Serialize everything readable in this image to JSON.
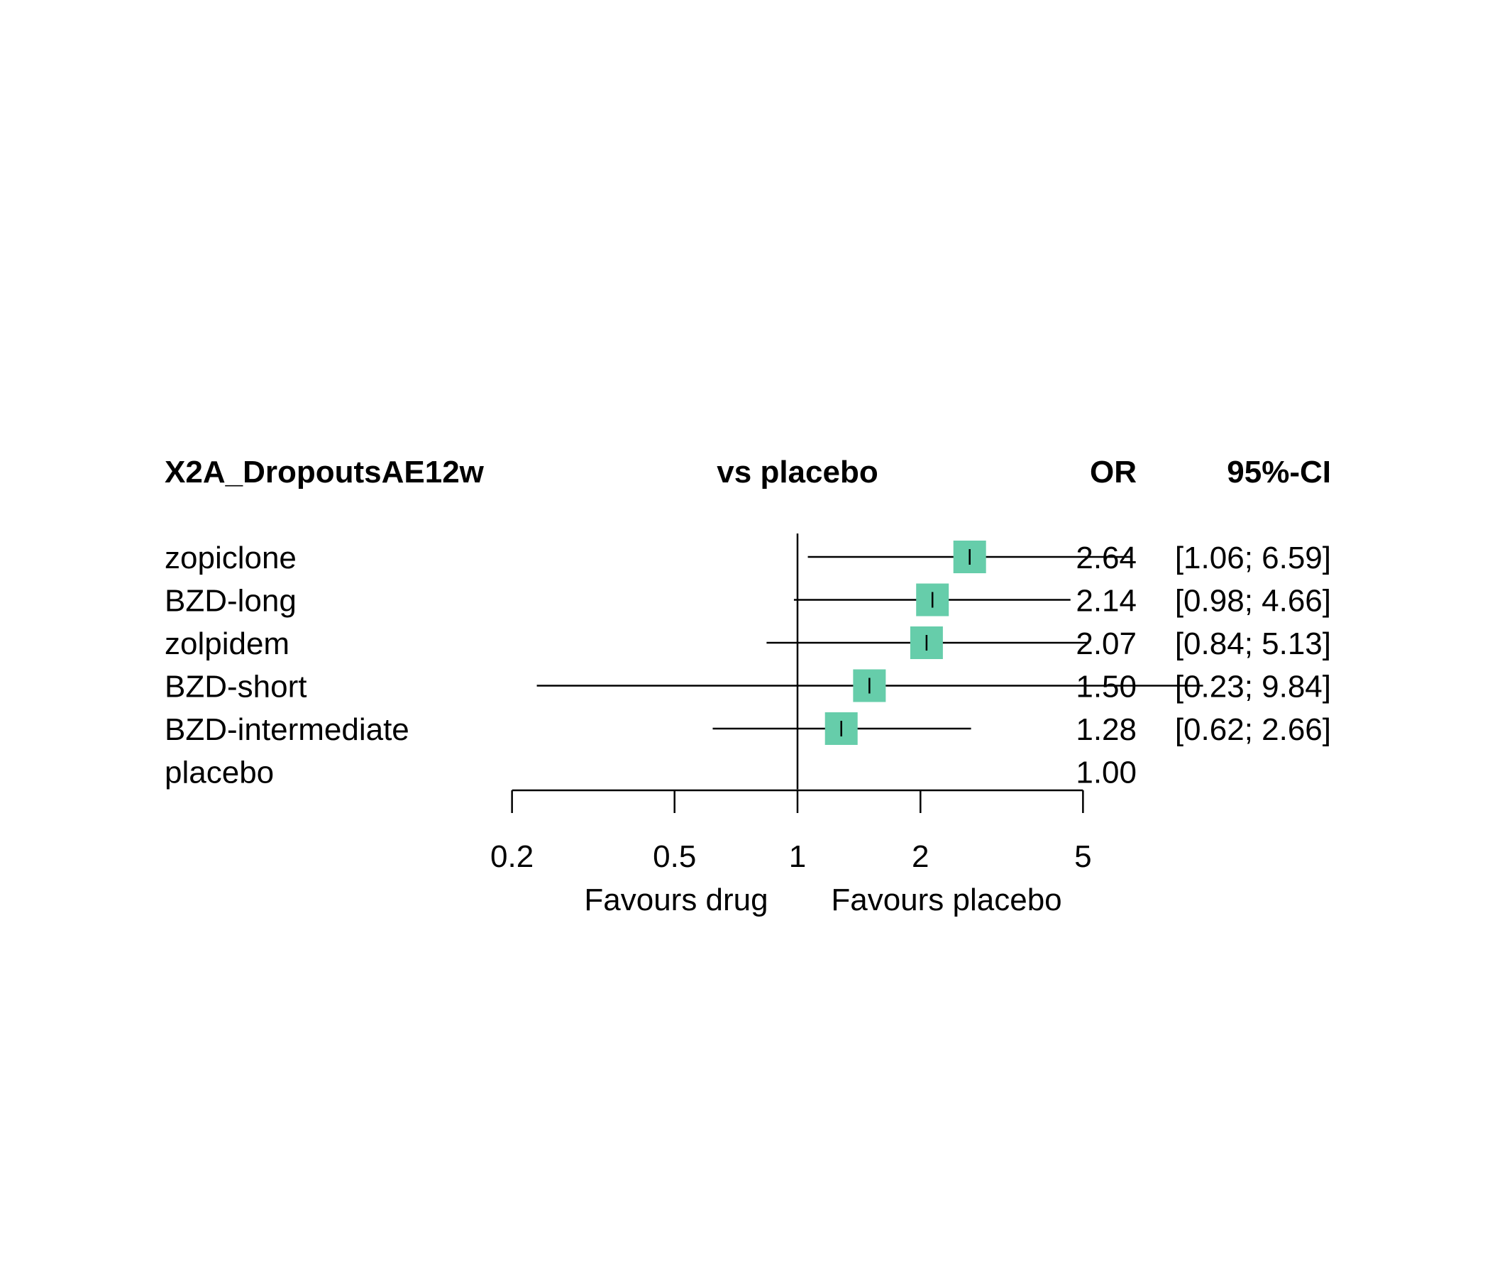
{
  "chart_data": {
    "type": "forest",
    "headers": {
      "outcome": "X2A_DropoutsAE12w",
      "comparison": "vs placebo",
      "effect": "OR",
      "ci": "95%-CI"
    },
    "scale": "log",
    "xlim": [
      0.2,
      5
    ],
    "x_ticks": [
      0.2,
      0.5,
      1,
      2,
      5
    ],
    "x_tick_labels": [
      "0.2",
      "0.5",
      "1",
      "2",
      "5"
    ],
    "reference_value": 1,
    "label_left": "Favours drug",
    "label_right": "Favours placebo",
    "point_color": "#66cdaa",
    "rows": [
      {
        "name": "zopiclone",
        "or": 2.64,
        "lower": 1.06,
        "upper": 6.59,
        "or_text": "2.64",
        "ci_text": "[1.06; 6.59]"
      },
      {
        "name": "BZD-long",
        "or": 2.14,
        "lower": 0.98,
        "upper": 4.66,
        "or_text": "2.14",
        "ci_text": "[0.98; 4.66]"
      },
      {
        "name": "zolpidem",
        "or": 2.07,
        "lower": 0.84,
        "upper": 5.13,
        "or_text": "2.07",
        "ci_text": "[0.84; 5.13]"
      },
      {
        "name": "BZD-short",
        "or": 1.5,
        "lower": 0.23,
        "upper": 9.84,
        "or_text": "1.50",
        "ci_text": "[0.23; 9.84]"
      },
      {
        "name": "BZD-intermediate",
        "or": 1.28,
        "lower": 0.62,
        "upper": 2.66,
        "or_text": "1.28",
        "ci_text": "[0.62; 2.66]"
      },
      {
        "name": "placebo",
        "or": 1.0,
        "lower": null,
        "upper": null,
        "or_text": "1.00",
        "ci_text": ""
      }
    ]
  }
}
